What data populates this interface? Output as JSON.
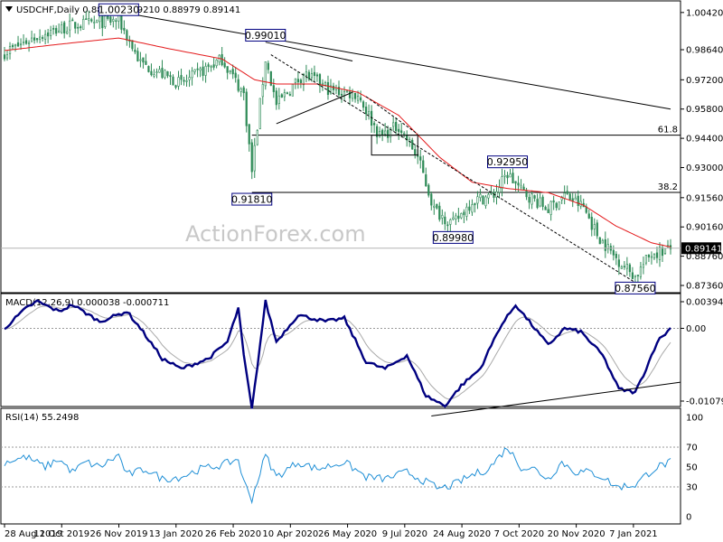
{
  "header": {
    "symbol_icon": "dropdown-triangle-icon",
    "title": "USDCHF,Daily  0.88984 0.89210 0.88979 0.89141"
  },
  "watermark": "ActionForex.com",
  "colors": {
    "price": "#2e8b57",
    "ma": "#e41a1c",
    "macd": "#000080",
    "signal": "#a9a9a9",
    "rsi": "#1f8fd6",
    "trendline": "#000000",
    "level": "#000000",
    "current_bg": "#000000"
  },
  "chart_data": [
    {
      "type": "candlestick",
      "panel": "price",
      "ylim": [
        0.8736,
        1.0024
      ],
      "y_ticks": [
        "1.00420",
        "0.98640",
        "0.97200",
        "0.95800",
        "0.94400",
        "0.93000",
        "0.91560",
        "0.90160",
        "0.88760",
        "0.87360"
      ],
      "x_ticks": [
        "28 Aug 2019",
        "11 Oct 2019",
        "26 Nov 2019",
        "13 Jan 2020",
        "26 Feb 2020",
        "10 Apr 2020",
        "26 May 2020",
        "9 Jul 2020",
        "24 Aug 2020",
        "7 Oct 2020",
        "20 Nov 2020",
        "7 Jan 2021"
      ],
      "current_price": "0.89141",
      "annotations": [
        {
          "label": "1.00230",
          "idx": 42
        },
        {
          "label": "0.99010",
          "idx": 96
        },
        {
          "label": "0.91810",
          "idx": 91
        },
        {
          "label": "0.92950",
          "idx": 185
        },
        {
          "label": "0.89980",
          "idx": 165
        },
        {
          "label": "0.87560",
          "idx": 232
        }
      ],
      "fib_levels": [
        {
          "label": "61.8",
          "value": 0.9455
        },
        {
          "label": "38.2",
          "value": 0.9181
        }
      ],
      "waypoints": [
        [
          0,
          0.985
        ],
        [
          12,
          0.993
        ],
        [
          25,
          0.998
        ],
        [
          42,
          1.0005
        ],
        [
          50,
          0.98
        ],
        [
          65,
          0.97
        ],
        [
          80,
          0.982
        ],
        [
          88,
          0.965
        ],
        [
          91,
          0.928
        ],
        [
          96,
          0.982
        ],
        [
          100,
          0.96
        ],
        [
          110,
          0.975
        ],
        [
          120,
          0.967
        ],
        [
          130,
          0.965
        ],
        [
          138,
          0.945
        ],
        [
          145,
          0.95
        ],
        [
          152,
          0.935
        ],
        [
          158,
          0.91
        ],
        [
          165,
          0.903
        ],
        [
          172,
          0.914
        ],
        [
          180,
          0.917
        ],
        [
          185,
          0.927
        ],
        [
          190,
          0.919
        ],
        [
          200,
          0.91
        ],
        [
          206,
          0.917
        ],
        [
          213,
          0.911
        ],
        [
          218,
          0.898
        ],
        [
          224,
          0.888
        ],
        [
          232,
          0.878
        ],
        [
          238,
          0.889
        ],
        [
          245,
          0.891
        ]
      ],
      "ma_waypoints": [
        [
          0,
          0.986
        ],
        [
          20,
          0.989
        ],
        [
          42,
          0.992
        ],
        [
          60,
          0.987
        ],
        [
          80,
          0.982
        ],
        [
          92,
          0.972
        ],
        [
          100,
          0.97
        ],
        [
          115,
          0.97
        ],
        [
          130,
          0.966
        ],
        [
          145,
          0.955
        ],
        [
          160,
          0.935
        ],
        [
          172,
          0.923
        ],
        [
          185,
          0.92
        ],
        [
          200,
          0.918
        ],
        [
          213,
          0.912
        ],
        [
          225,
          0.902
        ],
        [
          238,
          0.894
        ],
        [
          245,
          0.892
        ]
      ],
      "trendlines": [
        {
          "from": [
            42,
            1.0045
          ],
          "to": [
            245,
            0.958
          ]
        },
        {
          "from": [
            96,
            0.99
          ],
          "to": [
            128,
            0.981
          ]
        },
        {
          "from": [
            100,
            0.951
          ],
          "to": [
            128,
            0.966
          ]
        },
        {
          "from": [
            98,
            0.984
          ],
          "to": [
            232,
            0.875
          ]
        },
        {
          "from": [
            133,
            0.964
          ],
          "to": [
            152,
            0.946
          ]
        }
      ],
      "rectangles": [
        {
          "from": [
            135,
            0.9455
          ],
          "to": [
            152,
            0.936
          ]
        }
      ]
    },
    {
      "type": "line",
      "panel": "macd",
      "title": "MACD(12,26,9) 0.000038 -0.000711",
      "ylim": [
        -0.010793,
        0.003949
      ],
      "y_ticks": [
        "0.003949",
        "0.00",
        "-0.010793"
      ],
      "macd_waypoints": [
        [
          0,
          0.0
        ],
        [
          8,
          0.003
        ],
        [
          12,
          0.004
        ],
        [
          20,
          0.0025
        ],
        [
          25,
          0.0035
        ],
        [
          35,
          0.001
        ],
        [
          45,
          0.0025
        ],
        [
          50,
          0.0
        ],
        [
          58,
          -0.0045
        ],
        [
          65,
          -0.006
        ],
        [
          75,
          -0.0045
        ],
        [
          82,
          -0.002
        ],
        [
          86,
          0.003
        ],
        [
          88,
          -0.004
        ],
        [
          91,
          -0.012
        ],
        [
          96,
          0.004
        ],
        [
          100,
          -0.002
        ],
        [
          108,
          0.002
        ],
        [
          118,
          0.001
        ],
        [
          125,
          0.0015
        ],
        [
          133,
          -0.005
        ],
        [
          140,
          -0.006
        ],
        [
          148,
          -0.004
        ],
        [
          155,
          -0.01
        ],
        [
          162,
          -0.0115
        ],
        [
          168,
          -0.0085
        ],
        [
          175,
          -0.006
        ],
        [
          182,
          0.0
        ],
        [
          188,
          0.0035
        ],
        [
          194,
          0.0005
        ],
        [
          200,
          -0.0025
        ],
        [
          206,
          0.0
        ],
        [
          212,
          -0.0005
        ],
        [
          220,
          -0.004
        ],
        [
          226,
          -0.009
        ],
        [
          232,
          -0.0095
        ],
        [
          236,
          -0.006
        ],
        [
          240,
          -0.002
        ],
        [
          245,
          0.0
        ]
      ],
      "trendline": {
        "from": [
          157,
          -0.013
        ],
        "to": [
          245,
          -0.008
        ]
      }
    },
    {
      "type": "line",
      "panel": "rsi",
      "title": "RSI(14) 55.2498",
      "ylim": [
        0,
        100
      ],
      "y_ticks": [
        "100",
        "70",
        "50",
        "30",
        "0"
      ],
      "rsi_waypoints": [
        [
          0,
          55
        ],
        [
          8,
          60
        ],
        [
          15,
          50
        ],
        [
          20,
          58
        ],
        [
          25,
          45
        ],
        [
          30,
          55
        ],
        [
          35,
          50
        ],
        [
          42,
          62
        ],
        [
          45,
          42
        ],
        [
          52,
          48
        ],
        [
          58,
          38
        ],
        [
          65,
          40
        ],
        [
          72,
          48
        ],
        [
          80,
          52
        ],
        [
          86,
          58
        ],
        [
          88,
          35
        ],
        [
          91,
          18
        ],
        [
          96,
          62
        ],
        [
          100,
          40
        ],
        [
          108,
          55
        ],
        [
          115,
          48
        ],
        [
          125,
          55
        ],
        [
          133,
          40
        ],
        [
          140,
          38
        ],
        [
          148,
          45
        ],
        [
          155,
          35
        ],
        [
          160,
          28
        ],
        [
          165,
          32
        ],
        [
          172,
          42
        ],
        [
          178,
          48
        ],
        [
          185,
          70
        ],
        [
          190,
          50
        ],
        [
          195,
          48
        ],
        [
          200,
          38
        ],
        [
          205,
          55
        ],
        [
          210,
          45
        ],
        [
          215,
          45
        ],
        [
          220,
          40
        ],
        [
          225,
          30
        ],
        [
          232,
          32
        ],
        [
          236,
          42
        ],
        [
          240,
          50
        ],
        [
          245,
          55
        ]
      ]
    }
  ]
}
